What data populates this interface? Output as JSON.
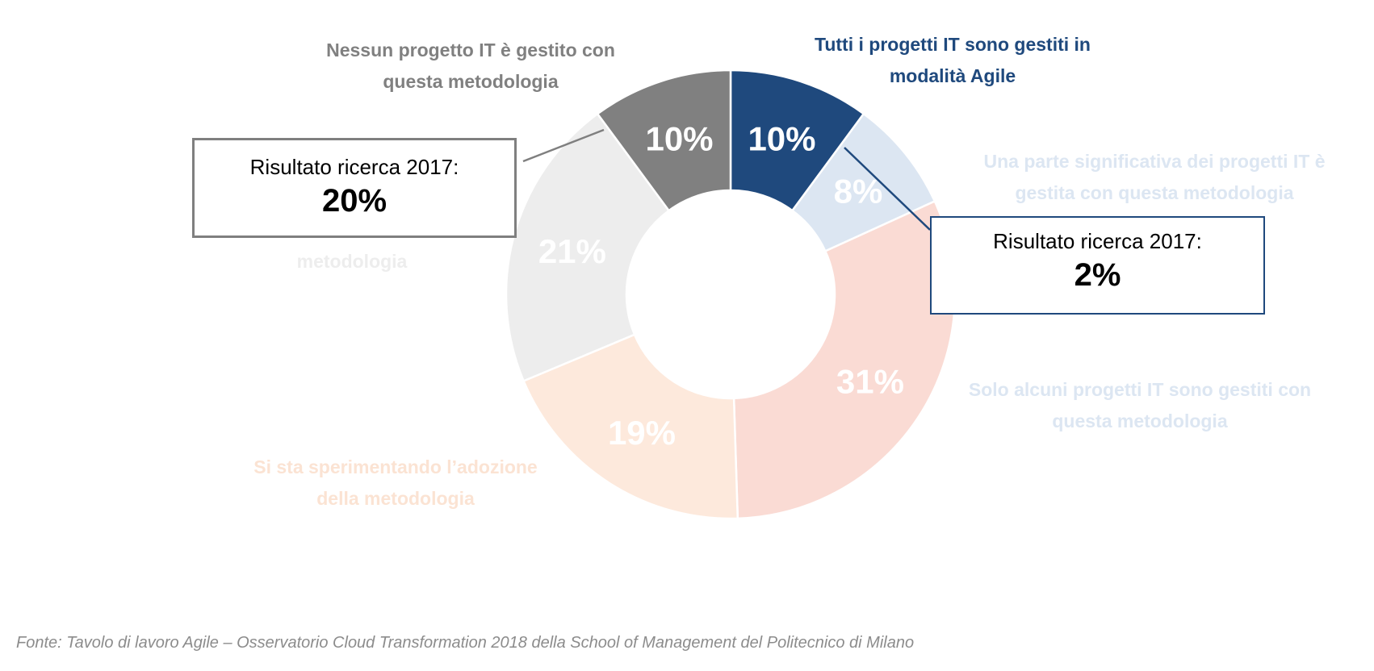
{
  "chart_data": {
    "type": "pie",
    "donut": true,
    "title": "",
    "slices": [
      {
        "label": [
          "Tutti i progetti IT sono gestiti in",
          "modalità Agile"
        ],
        "value": 10,
        "display": "10%",
        "color": "#1F497D",
        "label_color": "#1F497D"
      },
      {
        "label": [
          "Una parte significativa dei progetti IT è",
          "gestita con questa metodologia"
        ],
        "value": 8,
        "display": "8%",
        "color": "#DCE6F2",
        "label_color": "#DCE6F2"
      },
      {
        "label": [
          "Solo alcuni progetti IT sono gestiti con",
          "questa metodologia"
        ],
        "value": 31,
        "display": "31%",
        "color": "#FADBD4",
        "label_color": "#DCE6F2"
      },
      {
        "label": [
          "Si sta sperimentando l’adozione",
          "della metodologia"
        ],
        "value": 19,
        "display": "19%",
        "color": "#FDE9DC",
        "label_color": "#FBE3D3"
      },
      {
        "label": [
          "",
          "metodologia"
        ],
        "value": 21,
        "display": "21%",
        "color": "#EDEDED",
        "label_color": "#EDEDED"
      },
      {
        "label": [
          "Nessun progetto IT è gestito con",
          "questa metodologia"
        ],
        "value": 10,
        "display": "10%",
        "color": "#808080",
        "label_color": "#808080"
      }
    ]
  },
  "callouts": [
    {
      "title": "Risultato ricerca 2017:",
      "value": "20%",
      "border": "#7F7F7F"
    },
    {
      "title": "Risultato ricerca 2017:",
      "value": "2%",
      "border": "#1F497D"
    }
  ],
  "footer": "Fonte: Tavolo di lavoro Agile – Osservatorio Cloud Transformation 2018 della School of Management del Politecnico di Milano"
}
